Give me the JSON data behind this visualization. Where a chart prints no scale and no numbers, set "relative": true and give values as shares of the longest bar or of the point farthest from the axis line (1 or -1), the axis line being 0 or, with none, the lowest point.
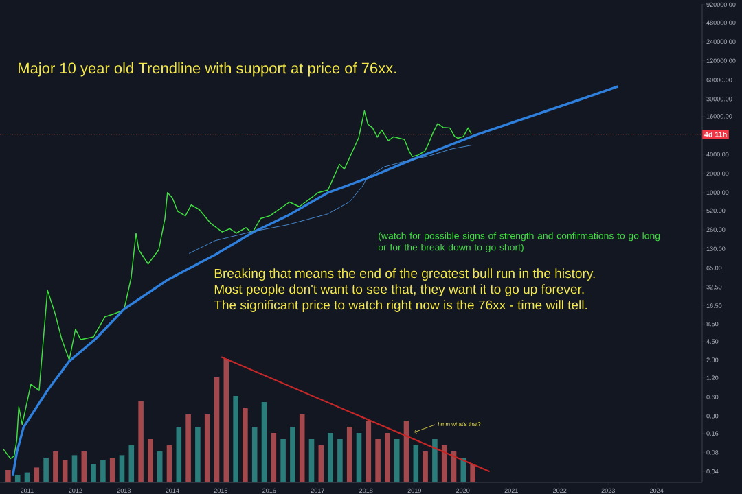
{
  "chart_data": [
    {
      "type": "line",
      "log": "y",
      "annotations": [
        "Major 10 year old Trendline with support at price of 76xx.",
        "(watch for possible signs of strength and confirmations to go long or for the break down to go short)",
        "Breaking that means the end of the greatest bull run in the history.",
        "Most people don't want to see that, they want it to go up forever.",
        "The significant price to watch right now is the 76xx - time will tell."
      ],
      "xlim": [
        "2010-06-10",
        "2024-12-10"
      ],
      "xticks": [
        "2011",
        "2012",
        "2013",
        "2014",
        "2015",
        "2016",
        "2017",
        "2018",
        "2019",
        "2020",
        "2021",
        "2022",
        "2023",
        "2024"
      ],
      "ylim": [
        0.027,
        940000
      ],
      "yticks": [
        {
          "value": 0.04,
          "label": "0.04"
        },
        {
          "value": 0.08,
          "label": "0.08"
        },
        {
          "value": 0.16,
          "label": "0.16"
        },
        {
          "value": 0.3,
          "label": "0.30"
        },
        {
          "value": 0.6,
          "label": "0.60"
        },
        {
          "value": 1.2,
          "label": "1.20"
        },
        {
          "value": 2.3,
          "label": "2.30"
        },
        {
          "value": 4.5,
          "label": "4.50"
        },
        {
          "value": 8.5,
          "label": "8.50"
        },
        {
          "value": 16.5,
          "label": "16.50"
        },
        {
          "value": 32.5,
          "label": "32.50"
        },
        {
          "value": 65,
          "label": "65.00"
        },
        {
          "value": 130,
          "label": "130.00"
        },
        {
          "value": 260,
          "label": "260.00"
        },
        {
          "value": 520,
          "label": "520.00"
        },
        {
          "value": 1000,
          "label": "1000.00"
        },
        {
          "value": 2000,
          "label": "2000.00"
        },
        {
          "value": 4000,
          "label": "4000.00"
        },
        {
          "value": 16000,
          "label": "16000.00"
        },
        {
          "value": 30000,
          "label": "30000.00"
        },
        {
          "value": 60000,
          "label": "60000.00"
        },
        {
          "value": 120000,
          "label": "120000.00"
        },
        {
          "value": 240000,
          "label": "240000.00"
        },
        {
          "value": 480000,
          "label": "480000.00"
        },
        {
          "value": 920000,
          "label": "920000.00"
        }
      ],
      "ref_lines": [
        {
          "axis": "y",
          "value": 8300,
          "label": "4d 11h",
          "color": "#f23645",
          "line_style": "dotted"
        }
      ],
      "series": [
        {
          "type": "line",
          "color": "#3fe03f",
          "x": [
            "2010-07-05",
            "2010-08-28",
            "2010-09-25",
            "2010-10-15",
            "2010-10-30",
            "2010-11-25",
            "2011-01-30",
            "2011-04-01",
            "2011-05-08",
            "2011-06-03",
            "2011-08-01",
            "2011-09-20",
            "2011-11-15",
            "2012-01-01",
            "2012-02-10",
            "2012-05-15",
            "2012-08-10",
            "2012-10-05",
            "2013-01-01",
            "2013-02-25",
            "2013-04-01",
            "2013-04-22",
            "2013-07-01",
            "2013-09-20",
            "2013-11-06",
            "2013-11-25",
            "2014-01-01",
            "2014-02-10",
            "2014-04-08",
            "2014-05-22",
            "2014-07-22",
            "2014-10-15",
            "2015-01-12",
            "2015-03-08",
            "2015-04-28",
            "2015-07-08",
            "2015-08-25",
            "2015-10-27",
            "2016-01-05",
            "2016-06-02",
            "2016-08-15",
            "2017-01-05",
            "2017-03-18",
            "2017-06-14",
            "2017-07-20",
            "2017-11-06",
            "2017-12-19",
            "2018-01-15",
            "2018-02-20",
            "2018-03-25",
            "2018-04-28",
            "2018-06-18",
            "2018-07-25",
            "2018-10-16",
            "2018-11-22",
            "2018-12-16",
            "2019-01-26",
            "2019-03-18",
            "2019-04-12",
            "2019-05-18",
            "2019-06-24",
            "2019-08-04",
            "2019-09-24",
            "2019-10-30",
            "2019-11-25",
            "2020-01-05",
            "2020-02-10",
            "2020-03-06"
          ],
          "values": [
            0.09,
            0.064,
            0.07,
            0.125,
            0.42,
            0.22,
            0.95,
            0.76,
            6.7,
            29,
            12,
            4.8,
            2.3,
            7,
            4.8,
            5.3,
            11,
            12,
            14,
            45,
            230,
            125,
            75,
            125,
            390,
            1000,
            830,
            510,
            430,
            640,
            540,
            330,
            240,
            270,
            230,
            280,
            230,
            390,
            430,
            710,
            600,
            1000,
            1100,
            2800,
            2350,
            7300,
            19500,
            12000,
            10500,
            7500,
            9700,
            6600,
            7600,
            6900,
            4500,
            3700,
            3900,
            4500,
            5700,
            8700,
            12300,
            10700,
            10500,
            7700,
            7200,
            7700,
            10500,
            8300
          ]
        },
        {
          "type": "line",
          "color": "#2f7fdc",
          "x": [
            "2010-09-15",
            "2010-10-15",
            "2010-12-05",
            "2011-03-08",
            "2011-06-03",
            "2011-11-15",
            "2012-05-30",
            "2013-01-01",
            "2013-11-25",
            "2014-11-20",
            "2015-09-06",
            "2016-05-15",
            "2017-03-18",
            "2018-01-15",
            "2018-12-05",
            "2020-04-20",
            "2022-06-15",
            "2023-03-15"
          ],
          "values": [
            0.034,
            0.08,
            0.2,
            0.4,
            0.76,
            2.2,
            4.9,
            14.5,
            42,
            105,
            240,
            430,
            1000,
            1700,
            3250,
            8300,
            30000,
            47400
          ]
        },
        {
          "type": "line",
          "color": "#4a8fd6",
          "x": [
            "2014-05-05",
            "2014-11-20",
            "2015-08-15",
            "2016-05-15",
            "2017-03-15",
            "2017-08-30",
            "2017-12-10",
            "2018-01-05",
            "2018-05-15",
            "2018-11-08",
            "2019-04-22",
            "2019-10-08",
            "2020-03-06"
          ],
          "values": [
            110,
            175,
            240,
            310,
            460,
            720,
            1310,
            1700,
            2550,
            3200,
            3800,
            4900,
            5600
          ]
        },
        {
          "type": "line",
          "color": "#c62828",
          "x": [
            "2015-01-05",
            "2020-07-20"
          ],
          "values": [
            2.56,
            0.04
          ]
        }
      ]
    },
    {
      "type": "bar",
      "relative": true,
      "annotations": [
        "hmm what's that?"
      ],
      "categories": [
        null,
        null,
        null,
        null,
        null,
        null,
        null,
        null,
        null,
        null,
        null,
        null,
        null,
        null,
        null,
        null,
        null,
        null,
        null,
        null,
        null,
        null,
        null,
        null,
        null,
        null,
        null,
        null,
        null,
        null,
        null,
        null,
        null,
        null,
        null,
        null,
        null,
        null,
        null,
        null,
        null,
        null,
        null,
        null,
        null,
        null,
        null,
        null,
        null,
        null
      ],
      "values": [
        0.1,
        0.06,
        0.08,
        0.12,
        0.2,
        0.25,
        0.18,
        0.22,
        0.25,
        0.15,
        0.18,
        0.2,
        0.22,
        0.3,
        0.66,
        0.35,
        0.25,
        0.3,
        0.45,
        0.55,
        0.45,
        0.55,
        0.85,
        1.0,
        0.7,
        0.6,
        0.45,
        0.65,
        0.4,
        0.35,
        0.45,
        0.55,
        0.35,
        0.3,
        0.4,
        0.35,
        0.45,
        0.4,
        0.5,
        0.35,
        0.4,
        0.35,
        0.5,
        0.3,
        0.25,
        0.35,
        0.3,
        0.25,
        0.2,
        0.15
      ],
      "colors": [
        "#a3484c",
        "#2a7d7a",
        "#2a7d7a",
        "#a3484c",
        "#2a7d7a",
        "#a3484c",
        "#a3484c",
        "#2a7d7a",
        "#a3484c",
        "#2a7d7a",
        "#2a7d7a",
        "#a3484c",
        "#2a7d7a",
        "#2a7d7a",
        "#a3484c",
        "#a3484c",
        "#2a7d7a",
        "#a3484c",
        "#2a7d7a",
        "#a3484c",
        "#2a7d7a",
        "#a3484c",
        "#a3484c",
        "#a3484c",
        "#2a7d7a",
        "#a3484c",
        "#2a7d7a",
        "#2a7d7a",
        "#a3484c",
        "#2a7d7a",
        "#2a7d7a",
        "#a3484c",
        "#2a7d7a",
        "#a3484c",
        "#2a7d7a",
        "#2a7d7a",
        "#a3484c",
        "#2a7d7a",
        "#a3484c",
        "#a3484c",
        "#a3484c",
        "#2a7d7a",
        "#a3484c",
        "#2a7d7a",
        "#a3484c",
        "#2a7d7a",
        "#a3484c",
        "#a3484c",
        "#2a7d7a",
        "#a3484c"
      ]
    }
  ]
}
